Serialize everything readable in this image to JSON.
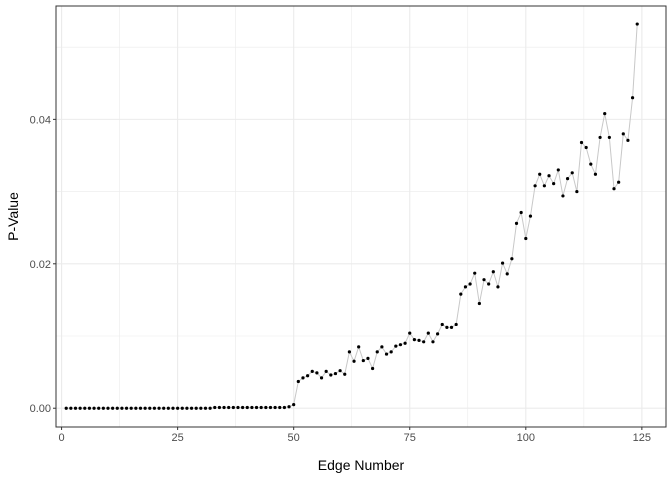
{
  "chart_data": {
    "type": "scatter",
    "title": "",
    "xlabel": "Edge Number",
    "ylabel": "P-Value",
    "xlim": [
      -1.2,
      130.2
    ],
    "ylim": [
      -0.0026,
      0.0557
    ],
    "x_ticks": [
      0,
      25,
      50,
      75,
      100,
      125
    ],
    "x_tick_labels": [
      "0",
      "25",
      "50",
      "75",
      "100",
      "125"
    ],
    "y_ticks": [
      0.0,
      0.02,
      0.04
    ],
    "y_tick_labels": [
      "0.00",
      "0.02",
      "0.04"
    ],
    "grid": true,
    "legend": "none",
    "colors": {
      "points": "#000000",
      "line": "#c8c8c8",
      "grid": "#ebebeb",
      "panel_border": "#333333"
    },
    "series": [
      {
        "x": [
          1,
          2,
          3,
          4,
          5,
          6,
          7,
          8,
          9,
          10,
          11,
          12,
          13,
          14,
          15,
          16,
          17,
          18,
          19,
          20,
          21,
          22,
          23,
          24,
          25,
          26,
          27,
          28,
          29,
          30,
          31,
          32,
          33,
          34,
          35,
          36,
          37,
          38,
          39,
          40,
          41,
          42,
          43,
          44,
          45,
          46,
          47,
          48,
          49,
          50,
          51,
          52,
          53,
          54,
          55,
          56,
          57,
          58,
          59,
          60,
          61,
          62,
          63,
          64,
          65,
          66,
          67,
          68,
          69,
          70,
          71,
          72,
          73,
          74,
          75,
          76,
          77,
          78,
          79,
          80,
          81,
          82,
          83,
          84,
          85,
          86,
          87,
          88,
          89,
          90,
          91,
          92,
          93,
          94,
          95,
          96,
          97,
          98,
          99,
          100,
          101,
          102,
          103,
          104,
          105,
          106,
          107,
          108,
          109,
          110,
          111,
          112,
          113,
          114,
          115,
          116,
          117,
          118,
          119,
          120,
          121,
          122,
          123,
          124
        ],
        "y": [
          0.0,
          0.0,
          0.0,
          0.0,
          0.0,
          0.0,
          0.0,
          0.0,
          0.0,
          0.0,
          0.0,
          0.0,
          0.0,
          0.0,
          0.0,
          0.0,
          0.0,
          0.0,
          0.0,
          0.0,
          0.0,
          0.0,
          0.0,
          0.0,
          0.0,
          0.0,
          0.0,
          0.0,
          0.0,
          0.0,
          0.0,
          0.0,
          0.0001,
          0.0001,
          0.0001,
          0.0001,
          0.0001,
          0.0001,
          0.0001,
          0.0001,
          0.0001,
          0.0001,
          0.0001,
          0.0001,
          0.0001,
          0.0001,
          0.0001,
          0.0001,
          0.0002,
          0.0005,
          0.0037,
          0.0042,
          0.0045,
          0.0051,
          0.0049,
          0.0042,
          0.0051,
          0.0046,
          0.0048,
          0.0052,
          0.0047,
          0.0078,
          0.0065,
          0.0085,
          0.0066,
          0.0069,
          0.0055,
          0.0078,
          0.0085,
          0.0075,
          0.0078,
          0.0086,
          0.0088,
          0.009,
          0.0104,
          0.0095,
          0.0094,
          0.0092,
          0.0104,
          0.0092,
          0.0103,
          0.0116,
          0.0112,
          0.0112,
          0.0116,
          0.0158,
          0.0168,
          0.0172,
          0.0187,
          0.0145,
          0.0178,
          0.0172,
          0.0189,
          0.0168,
          0.0201,
          0.0186,
          0.0207,
          0.0256,
          0.0271,
          0.0235,
          0.0266,
          0.0308,
          0.0324,
          0.0308,
          0.0322,
          0.0311,
          0.033,
          0.0294,
          0.0318,
          0.0326,
          0.03,
          0.0368,
          0.0361,
          0.0338,
          0.0324,
          0.0375,
          0.0408,
          0.0375,
          0.0304,
          0.0313,
          0.038,
          0.0371,
          0.043,
          0.0532
        ]
      }
    ]
  }
}
